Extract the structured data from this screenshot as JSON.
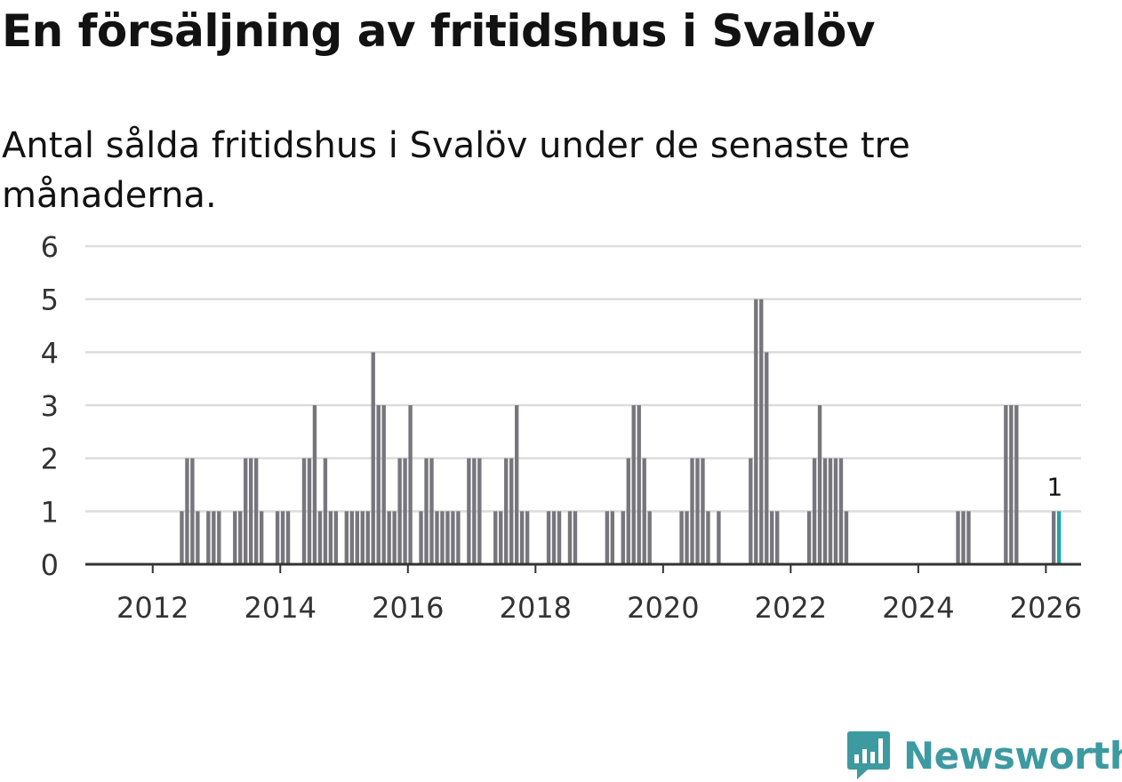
{
  "title": "En försäljning av fritidshus i Svalöv",
  "subtitle": "Antal sålda fritidshus i Svalöv under de senaste tre månaderna.",
  "brand": {
    "name": "Newsworthy",
    "icon": "newsworthy-logo-icon",
    "color": "#3d9aa0"
  },
  "colors": {
    "bar": "#76767c",
    "highlight": "#1aa6a6",
    "grid": "#dcdcdc",
    "axis": "#333333"
  },
  "chart_data": {
    "type": "bar",
    "title": "En försäljning av fritidshus i Svalöv",
    "subtitle": "Antal sålda fritidshus i Svalöv under de senaste tre månaderna.",
    "xlabel": "",
    "ylabel": "",
    "ylim": [
      0,
      6
    ],
    "yticks": [
      0,
      1,
      2,
      3,
      4,
      5,
      6
    ],
    "xticks": [
      "2012",
      "2014",
      "2016",
      "2018",
      "2020",
      "2022",
      "2024",
      "2026"
    ],
    "grid": true,
    "legend": "none",
    "series": [
      {
        "values": [
          {
            "x": "2012-06",
            "y": 1
          },
          {
            "x": "2012-07",
            "y": 2
          },
          {
            "x": "2012-08",
            "y": 2
          },
          {
            "x": "2012-09",
            "y": 1
          },
          {
            "x": "2012-11",
            "y": 1
          },
          {
            "x": "2012-12",
            "y": 1
          },
          {
            "x": "2013-01",
            "y": 1
          },
          {
            "x": "2013-04",
            "y": 1
          },
          {
            "x": "2013-05",
            "y": 1
          },
          {
            "x": "2013-06",
            "y": 2
          },
          {
            "x": "2013-07",
            "y": 2
          },
          {
            "x": "2013-08",
            "y": 2
          },
          {
            "x": "2013-09",
            "y": 1
          },
          {
            "x": "2013-12",
            "y": 1
          },
          {
            "x": "2014-01",
            "y": 1
          },
          {
            "x": "2014-02",
            "y": 1
          },
          {
            "x": "2014-05",
            "y": 2
          },
          {
            "x": "2014-06",
            "y": 2
          },
          {
            "x": "2014-07",
            "y": 3
          },
          {
            "x": "2014-08",
            "y": 1
          },
          {
            "x": "2014-09",
            "y": 2
          },
          {
            "x": "2014-10",
            "y": 1
          },
          {
            "x": "2014-11",
            "y": 1
          },
          {
            "x": "2015-01",
            "y": 1
          },
          {
            "x": "2015-02",
            "y": 1
          },
          {
            "x": "2015-03",
            "y": 1
          },
          {
            "x": "2015-04",
            "y": 1
          },
          {
            "x": "2015-05",
            "y": 1
          },
          {
            "x": "2015-06",
            "y": 4
          },
          {
            "x": "2015-07",
            "y": 3
          },
          {
            "x": "2015-08",
            "y": 3
          },
          {
            "x": "2015-09",
            "y": 1
          },
          {
            "x": "2015-10",
            "y": 1
          },
          {
            "x": "2015-11",
            "y": 2
          },
          {
            "x": "2015-12",
            "y": 2
          },
          {
            "x": "2016-01",
            "y": 3
          },
          {
            "x": "2016-03",
            "y": 1
          },
          {
            "x": "2016-04",
            "y": 2
          },
          {
            "x": "2016-05",
            "y": 2
          },
          {
            "x": "2016-06",
            "y": 1
          },
          {
            "x": "2016-07",
            "y": 1
          },
          {
            "x": "2016-08",
            "y": 1
          },
          {
            "x": "2016-09",
            "y": 1
          },
          {
            "x": "2016-10",
            "y": 1
          },
          {
            "x": "2016-12",
            "y": 2
          },
          {
            "x": "2017-01",
            "y": 2
          },
          {
            "x": "2017-02",
            "y": 2
          },
          {
            "x": "2017-05",
            "y": 1
          },
          {
            "x": "2017-06",
            "y": 1
          },
          {
            "x": "2017-07",
            "y": 2
          },
          {
            "x": "2017-08",
            "y": 2
          },
          {
            "x": "2017-09",
            "y": 3
          },
          {
            "x": "2017-10",
            "y": 1
          },
          {
            "x": "2017-11",
            "y": 1
          },
          {
            "x": "2018-03",
            "y": 1
          },
          {
            "x": "2018-04",
            "y": 1
          },
          {
            "x": "2018-05",
            "y": 1
          },
          {
            "x": "2018-07",
            "y": 1
          },
          {
            "x": "2018-08",
            "y": 1
          },
          {
            "x": "2019-02",
            "y": 1
          },
          {
            "x": "2019-03",
            "y": 1
          },
          {
            "x": "2019-05",
            "y": 1
          },
          {
            "x": "2019-06",
            "y": 2
          },
          {
            "x": "2019-07",
            "y": 3
          },
          {
            "x": "2019-08",
            "y": 3
          },
          {
            "x": "2019-09",
            "y": 2
          },
          {
            "x": "2019-10",
            "y": 1
          },
          {
            "x": "2020-04",
            "y": 1
          },
          {
            "x": "2020-05",
            "y": 1
          },
          {
            "x": "2020-06",
            "y": 2
          },
          {
            "x": "2020-07",
            "y": 2
          },
          {
            "x": "2020-08",
            "y": 2
          },
          {
            "x": "2020-09",
            "y": 1
          },
          {
            "x": "2020-11",
            "y": 1
          },
          {
            "x": "2021-05",
            "y": 2
          },
          {
            "x": "2021-06",
            "y": 5
          },
          {
            "x": "2021-07",
            "y": 5
          },
          {
            "x": "2021-08",
            "y": 4
          },
          {
            "x": "2021-09",
            "y": 1
          },
          {
            "x": "2021-10",
            "y": 1
          },
          {
            "x": "2022-04",
            "y": 1
          },
          {
            "x": "2022-05",
            "y": 2
          },
          {
            "x": "2022-06",
            "y": 3
          },
          {
            "x": "2022-07",
            "y": 2
          },
          {
            "x": "2022-08",
            "y": 2
          },
          {
            "x": "2022-09",
            "y": 2
          },
          {
            "x": "2022-10",
            "y": 2
          },
          {
            "x": "2022-11",
            "y": 1
          },
          {
            "x": "2024-08",
            "y": 1
          },
          {
            "x": "2024-09",
            "y": 1
          },
          {
            "x": "2024-10",
            "y": 1
          },
          {
            "x": "2025-05",
            "y": 3
          },
          {
            "x": "2025-06",
            "y": 3
          },
          {
            "x": "2025-07",
            "y": 3
          },
          {
            "x": "2026-02",
            "y": 1
          },
          {
            "x": "2026-03",
            "y": 1
          }
        ]
      }
    ],
    "highlight": {
      "x": "2026-03",
      "y": 1,
      "label": "1"
    }
  }
}
